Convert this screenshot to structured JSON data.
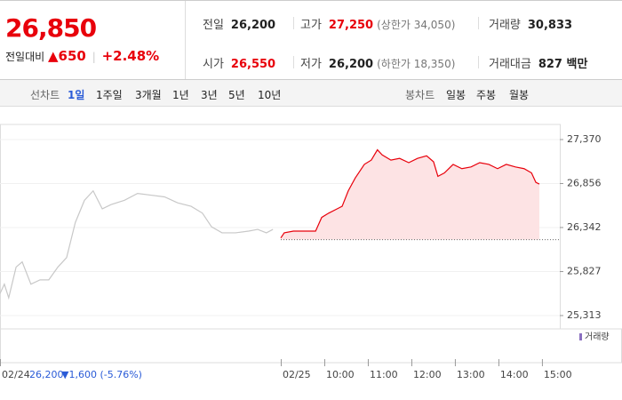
{
  "header": {
    "price": "26,850",
    "change_label": "전일대비",
    "change": "▲650",
    "change_rate": "+2.48%",
    "stats": [
      {
        "key": "전일",
        "value": "26,200"
      },
      {
        "key": "고가",
        "value": "27,250",
        "note": "(상한가 34,050)"
      },
      {
        "key": "거래량",
        "value": "30,833"
      },
      {
        "key": "시가",
        "value": "26,550"
      },
      {
        "key": "저가",
        "value": "26,200",
        "note": "(하한가 18,350)"
      },
      {
        "key": "거래대금",
        "value": "827 백만"
      }
    ]
  },
  "tabs": {
    "line_label": "선차트",
    "line": [
      "1일",
      "1주일",
      "3개월",
      "1년",
      "3년",
      "5년",
      "10년"
    ],
    "candle_label": "봉차트",
    "candle": [
      "일봉",
      "주봉",
      "월봉"
    ]
  },
  "chart_data": {
    "type": "line",
    "volume_label": "거래량",
    "readout": [
      "26,200",
      "▼1,600 (-5.76%)"
    ],
    "xlim": [
      2.55,
      15.41
    ],
    "ylim": [
      25313,
      27370
    ],
    "baseline": 26200,
    "yticks": [
      {
        "value": 27370,
        "label": "27,370"
      },
      {
        "value": 26856,
        "label": "26,856"
      },
      {
        "value": 26342,
        "label": "26,342"
      },
      {
        "value": 25827,
        "label": "25,827"
      },
      {
        "value": 25313,
        "label": "25,313"
      }
    ],
    "xticks": [
      {
        "value": 2.55,
        "label": "02/24"
      },
      {
        "value": 9,
        "label": "02/25"
      },
      {
        "value": 10,
        "label": "10:00"
      },
      {
        "value": 11,
        "label": "11:00"
      },
      {
        "value": 12,
        "label": "12:00"
      },
      {
        "value": 13,
        "label": "13:00"
      },
      {
        "value": 14,
        "label": "14:00"
      },
      {
        "value": 15,
        "label": "15:00"
      }
    ],
    "series": [
      {
        "color": "#c8c8c8",
        "x": [
          2.55,
          2.65,
          2.75,
          2.92,
          3.06,
          3.26,
          3.47,
          3.67,
          3.88,
          4.08,
          4.28,
          4.49,
          4.69,
          4.9,
          5.1,
          5.41,
          5.71,
          6.02,
          6.33,
          6.63,
          6.94,
          7.2,
          7.41,
          7.65,
          7.96,
          8.26,
          8.47,
          8.67,
          8.82
        ],
        "values": [
          25570,
          25680,
          25520,
          25880,
          25940,
          25680,
          25730,
          25730,
          25880,
          25990,
          26400,
          26660,
          26770,
          26560,
          26610,
          26660,
          26740,
          26720,
          26700,
          26630,
          26590,
          26510,
          26350,
          26280,
          26280,
          26300,
          26320,
          26280,
          26320
        ]
      },
      {
        "color": "#e8000b",
        "fill": "#fde3e4",
        "x": [
          9,
          9.08,
          9.29,
          9.8,
          9.94,
          10.1,
          10.41,
          10.55,
          10.71,
          10.92,
          11.08,
          11.22,
          11.33,
          11.53,
          11.73,
          11.94,
          12.14,
          12.35,
          12.51,
          12.61,
          12.76,
          12.96,
          13.16,
          13.37,
          13.57,
          13.78,
          13.98,
          14.18,
          14.39,
          14.59,
          14.76,
          14.86,
          14.94
        ],
        "values": [
          26220,
          26280,
          26300,
          26300,
          26460,
          26510,
          26590,
          26770,
          26920,
          27080,
          27130,
          27250,
          27190,
          27130,
          27150,
          27100,
          27150,
          27180,
          27110,
          26940,
          26980,
          27080,
          27030,
          27050,
          27100,
          27080,
          27030,
          27080,
          27050,
          27030,
          26980,
          26870,
          26850
        ]
      }
    ]
  }
}
